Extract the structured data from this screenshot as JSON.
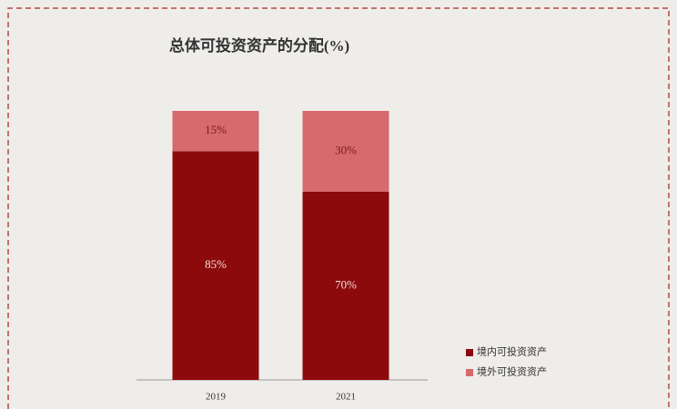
{
  "chart_data": {
    "type": "stacked-bar",
    "title": "总体可投资资产的分配(%)",
    "categories": [
      "2019",
      "2021"
    ],
    "series": [
      {
        "name": "境内可投资资产",
        "color": "#8d0a0c",
        "values": [
          85,
          70
        ],
        "value_labels": [
          "85%",
          "70%"
        ]
      },
      {
        "name": "境外可投资资产",
        "color": "#d66a6c",
        "values": [
          15,
          30
        ],
        "value_labels": [
          "15%",
          "30%"
        ]
      }
    ],
    "legend": "bottom-right"
  }
}
